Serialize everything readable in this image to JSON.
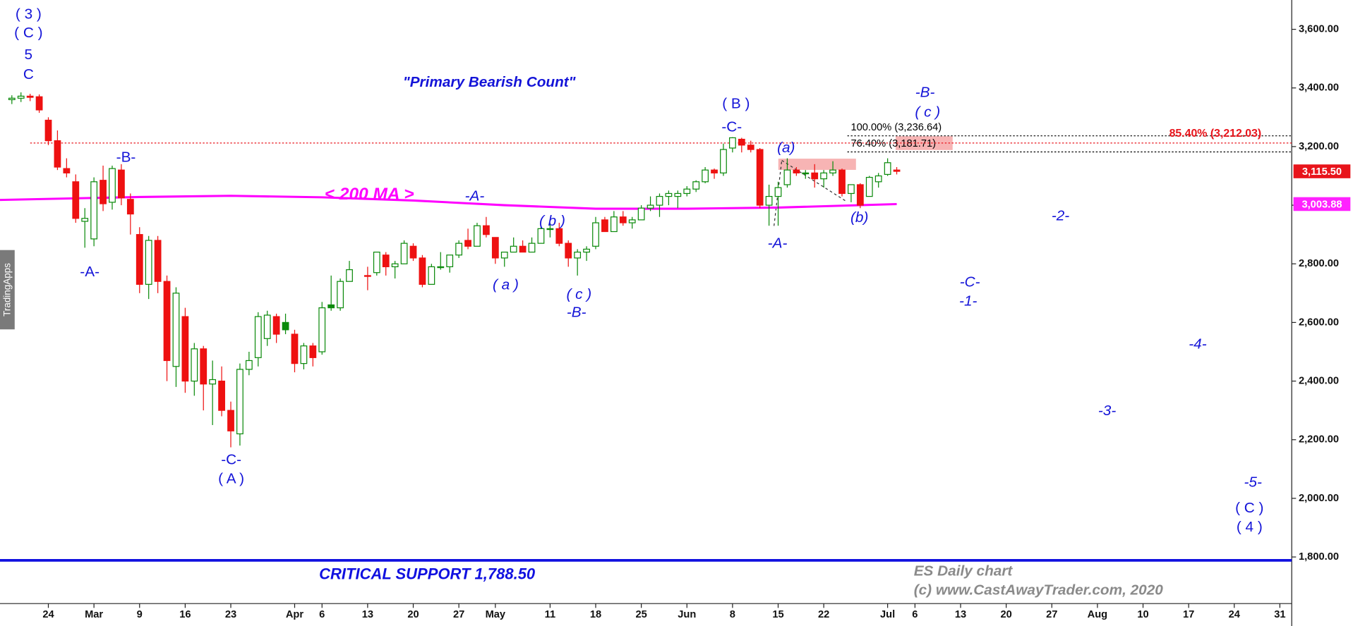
{
  "chart_data": {
    "type": "candlestick",
    "title": "\"Primary Bearish Count\"",
    "xlim": [
      -5.3,
      136.3
    ],
    "xticks": [
      {
        "value": 0,
        "label": "24"
      },
      {
        "value": 5,
        "label": "Mar"
      },
      {
        "value": 10,
        "label": "9"
      },
      {
        "value": 15,
        "label": "16"
      },
      {
        "value": 20,
        "label": "23"
      },
      {
        "value": 27,
        "label": "Apr"
      },
      {
        "value": 30,
        "label": "6"
      },
      {
        "value": 35,
        "label": "13"
      },
      {
        "value": 40,
        "label": "20"
      },
      {
        "value": 45,
        "label": "27"
      },
      {
        "value": 49,
        "label": "May"
      },
      {
        "value": 55,
        "label": "11"
      },
      {
        "value": 60,
        "label": "18"
      },
      {
        "value": 65,
        "label": "25"
      },
      {
        "value": 70,
        "label": "Jun"
      },
      {
        "value": 75,
        "label": "8"
      },
      {
        "value": 80,
        "label": "15"
      },
      {
        "value": 85,
        "label": "22"
      },
      {
        "value": 92,
        "label": "Jul"
      },
      {
        "value": 95,
        "label": "6"
      },
      {
        "value": 100,
        "label": "13"
      },
      {
        "value": 105,
        "label": "20"
      },
      {
        "value": 110,
        "label": "27"
      },
      {
        "value": 115,
        "label": "Aug"
      },
      {
        "value": 120,
        "label": "10"
      },
      {
        "value": 125,
        "label": "17"
      },
      {
        "value": 130,
        "label": "24"
      },
      {
        "value": 135,
        "label": "31"
      }
    ],
    "ylim": [
      1641,
      3700
    ],
    "yticks": [
      {
        "value": 1800,
        "label": "1,800.00"
      },
      {
        "value": 2000,
        "label": "2,000.00"
      },
      {
        "value": 2200,
        "label": "2,200.00"
      },
      {
        "value": 2400,
        "label": "2,400.00"
      },
      {
        "value": 2600,
        "label": "2,600.00"
      },
      {
        "value": 2800,
        "label": "2,800.00"
      },
      {
        "value": 3000,
        "label": "3,000.00"
      },
      {
        "value": 3200,
        "label": "3,200.00"
      },
      {
        "value": 3400,
        "label": "3,400.00"
      },
      {
        "value": 3600,
        "label": "3,600.00"
      }
    ],
    "candles": {
      "up_color": "#0b8a0b",
      "down_color": "#ee1111",
      "x": [
        -4,
        -3,
        -2,
        -1,
        0,
        1,
        2,
        3,
        4,
        5,
        6,
        7,
        8,
        9,
        10,
        11,
        12,
        13,
        14,
        15,
        16,
        17,
        18,
        19,
        20,
        21,
        22,
        23,
        24,
        25,
        26,
        27,
        28,
        29,
        30,
        31,
        32,
        33,
        35,
        36,
        37,
        38,
        39,
        40,
        41,
        42,
        43,
        44,
        45,
        46,
        47,
        48,
        49,
        50,
        51,
        52,
        53,
        54,
        55,
        56,
        57,
        58,
        59,
        60,
        61,
        62,
        63,
        64,
        65,
        66,
        67,
        68,
        69,
        70,
        71,
        72,
        73,
        74,
        75,
        76,
        77,
        78,
        79,
        80,
        81,
        82,
        83,
        84,
        85,
        86,
        87,
        88,
        89,
        90,
        91,
        92,
        93
      ],
      "open": [
        3360,
        3365,
        3372,
        3370,
        3290,
        3220,
        3125,
        3080,
        2945,
        2885,
        3085,
        3010,
        3120,
        3020,
        2900,
        2730,
        2880,
        2740,
        2450,
        2620,
        2400,
        2510,
        2390,
        2400,
        2300,
        2220,
        2440,
        2480,
        2545,
        2620,
        2600,
        2560,
        2460,
        2520,
        2500,
        2660,
        2650,
        2740,
        2760,
        2770,
        2830,
        2790,
        2800,
        2860,
        2820,
        2730,
        2790,
        2790,
        2830,
        2880,
        2860,
        2930,
        2890,
        2820,
        2840,
        2860,
        2840,
        2870,
        2920,
        2920,
        2870,
        2820,
        2840,
        2860,
        2950,
        2910,
        2960,
        2940,
        2950,
        2990,
        3000,
        3030,
        3030,
        3040,
        3055,
        3080,
        3120,
        3110,
        3195,
        3225,
        3205,
        3190,
        3000,
        3030,
        3070,
        3120,
        3110,
        3110,
        3090,
        3110,
        3120,
        3040,
        3070,
        3030,
        3080,
        3105,
        3120
      ],
      "high": [
        3375,
        3385,
        3380,
        3378,
        3300,
        3255,
        3160,
        3105,
        2990,
        3095,
        3135,
        3135,
        3140,
        3040,
        2925,
        2895,
        2895,
        2760,
        2720,
        2650,
        2530,
        2520,
        2470,
        2450,
        2330,
        2460,
        2500,
        2635,
        2640,
        2630,
        2630,
        2575,
        2530,
        2530,
        2670,
        2760,
        2750,
        2810,
        2790,
        2840,
        2840,
        2810,
        2880,
        2870,
        2830,
        2800,
        2840,
        2830,
        2880,
        2920,
        2940,
        2960,
        2890,
        2840,
        2890,
        2880,
        2890,
        2930,
        2940,
        2940,
        2880,
        2850,
        2860,
        2960,
        2960,
        2980,
        2980,
        2960,
        3000,
        3030,
        3040,
        3050,
        3050,
        3065,
        3085,
        3130,
        3125,
        3210,
        3232,
        3230,
        3220,
        3195,
        3070,
        3080,
        3160,
        3130,
        3120,
        3140,
        3120,
        3150,
        3125,
        3070,
        3075,
        3100,
        3110,
        3160,
        3130
      ],
      "low": [
        3345,
        3352,
        3355,
        3315,
        3205,
        3120,
        3095,
        2940,
        2855,
        2860,
        2980,
        2985,
        3000,
        2900,
        2700,
        2680,
        2700,
        2400,
        2380,
        2360,
        2350,
        2300,
        2250,
        2280,
        2174,
        2180,
        2420,
        2450,
        2520,
        2530,
        2560,
        2430,
        2440,
        2450,
        2490,
        2640,
        2640,
        2740,
        2710,
        2760,
        2760,
        2750,
        2800,
        2810,
        2720,
        2730,
        2780,
        2770,
        2820,
        2850,
        2860,
        2890,
        2800,
        2790,
        2840,
        2840,
        2840,
        2870,
        2890,
        2860,
        2790,
        2760,
        2810,
        2850,
        2910,
        2910,
        2930,
        2920,
        2950,
        2980,
        2960,
        3000,
        2990,
        3030,
        3045,
        3075,
        3090,
        3100,
        3180,
        3180,
        3180,
        2990,
        2930,
        2930,
        3060,
        3100,
        3090,
        3060,
        3060,
        3100,
        3030,
        3010,
        2990,
        3030,
        3060,
        3100,
        3105
      ],
      "close": [
        3365,
        3372,
        3368,
        3325,
        3220,
        3130,
        3110,
        2955,
        2955,
        3080,
        3005,
        3125,
        3025,
        2970,
        2730,
        2880,
        2740,
        2470,
        2700,
        2400,
        2510,
        2390,
        2405,
        2300,
        2230,
        2440,
        2470,
        2620,
        2625,
        2560,
        2575,
        2460,
        2520,
        2480,
        2650,
        2650,
        2740,
        2780,
        2760,
        2840,
        2790,
        2800,
        2870,
        2820,
        2730,
        2790,
        2790,
        2830,
        2870,
        2860,
        2930,
        2900,
        2820,
        2840,
        2860,
        2840,
        2870,
        2920,
        2920,
        2870,
        2820,
        2840,
        2850,
        2940,
        2910,
        2960,
        2940,
        2950,
        2990,
        3000,
        3030,
        3040,
        3040,
        3055,
        3080,
        3120,
        3110,
        3190,
        3230,
        3205,
        3190,
        3000,
        3030,
        3060,
        3120,
        3110,
        3110,
        3090,
        3110,
        3120,
        3040,
        3070,
        3000,
        3095,
        3100,
        3145,
        3115.5
      ]
    },
    "ma": {
      "name": "< 200 MA >",
      "color": "#ff00ff",
      "x": [
        -5.3,
        10,
        20,
        30,
        40,
        50,
        60,
        70,
        80,
        93
      ],
      "values": [
        3018,
        3028,
        3032,
        3027,
        3016,
        3000,
        2988,
        2988,
        2992,
        3003.88
      ]
    },
    "levels": [
      {
        "label": "100.00% (3,236.64)",
        "value": 3236.64,
        "color": "#000000"
      },
      {
        "label": "76.40% (3,181.71)",
        "value": 3181.71,
        "color": "#000000"
      },
      {
        "label": "85.40% (3,212.03)",
        "value": 3212.03,
        "color": "#e8141b"
      },
      {
        "label": "CRITICAL SUPPORT 1,788.50",
        "value": 1788.5,
        "color": "#1010e0"
      }
    ],
    "last_prices": [
      {
        "label": "3,115.50",
        "value": 3115.5,
        "color": "#e8141b"
      },
      {
        "label": "3,003.88",
        "value": 3003.88,
        "color": "#ff22ff"
      }
    ],
    "annotations": [
      "( 3 )",
      "( C )",
      "5",
      "C",
      "-A-",
      "-B-",
      "-C-",
      "( A )",
      "-A-",
      "( b )",
      "( a )",
      "( c )",
      "-B-",
      "( B )",
      "-C-",
      "(a)",
      "-A-",
      "(b)",
      "-B-",
      "( c )",
      "-2-",
      "-C-",
      "-1-",
      "-4-",
      "-3-",
      "-5-",
      "( C )",
      "( 4 )"
    ],
    "footer": [
      "ES Daily chart",
      "(c) www.CastAwayTrader.com, 2020"
    ],
    "brand": "TradingApps"
  }
}
